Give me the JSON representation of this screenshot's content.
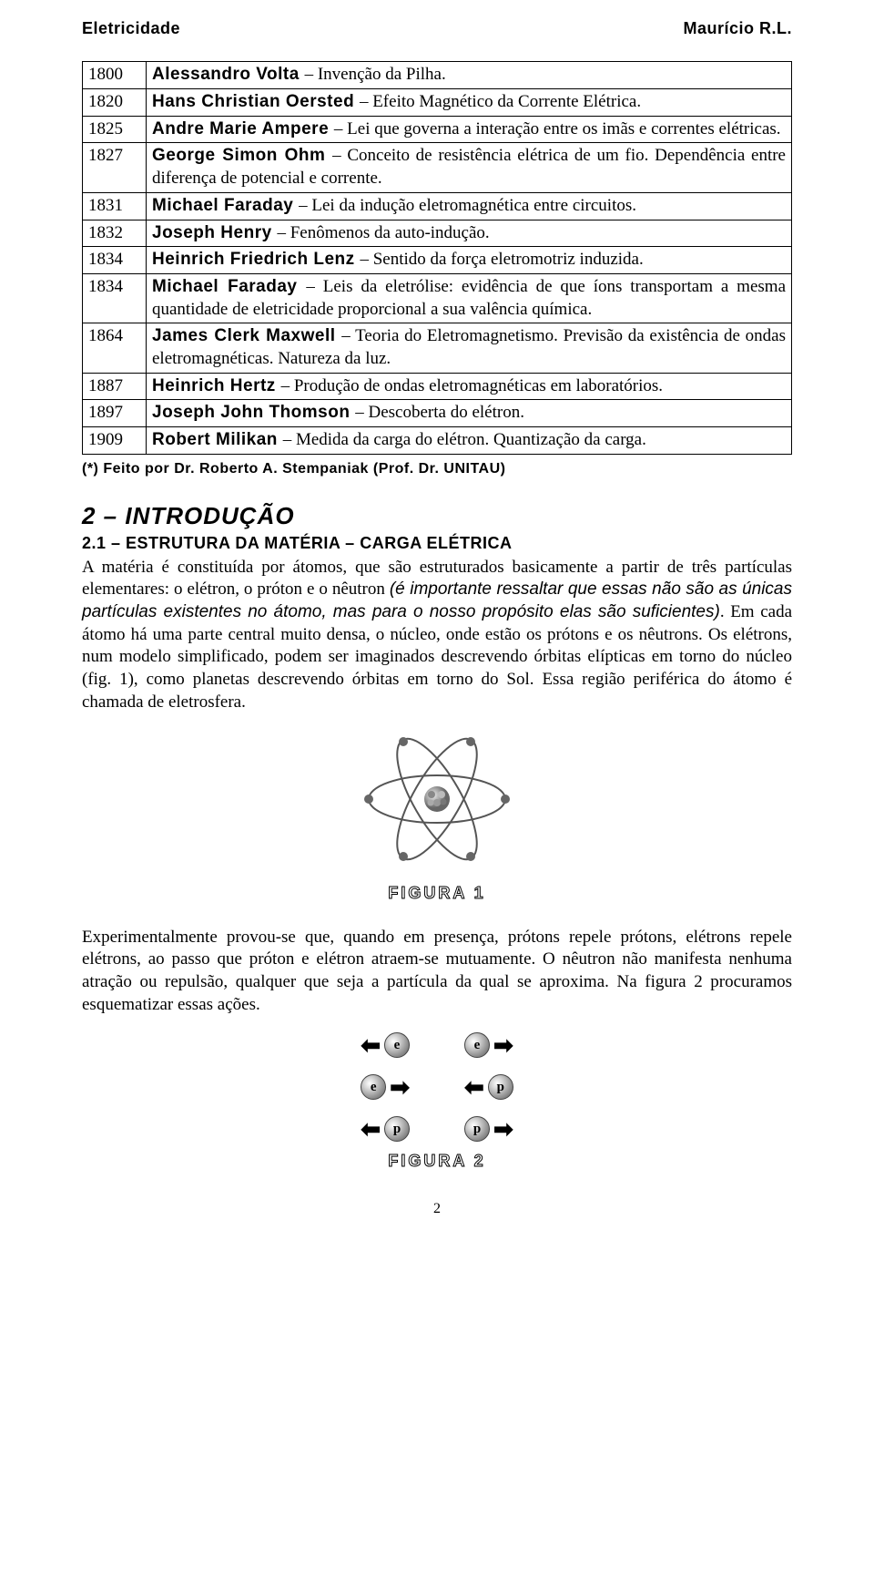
{
  "header": {
    "left": "Eletricidade",
    "right": "Maurício R.L."
  },
  "timeline": [
    {
      "year": "1800",
      "name": "Alessandro Volta",
      "text": "– Invenção da Pilha."
    },
    {
      "year": "1820",
      "name": "Hans Christian Oersted",
      "text": "– Efeito Magnético da Corrente Elétrica."
    },
    {
      "year": "1825",
      "name": "Andre Marie Ampere",
      "text": "– Lei que governa a interação entre os imãs e correntes elétricas."
    },
    {
      "year": "1827",
      "name": "George Simon Ohm",
      "text": "– Conceito de resistência elétrica de um fio. Dependência entre diferença de potencial e corrente."
    },
    {
      "year": "1831",
      "name": "Michael Faraday",
      "text": "– Lei da indução eletromagnética entre circuitos."
    },
    {
      "year": "1832",
      "name": "Joseph Henry",
      "text": "– Fenômenos da auto-indução."
    },
    {
      "year": "1834",
      "name": "Heinrich Friedrich Lenz",
      "text": "– Sentido da força eletromotriz induzida."
    },
    {
      "year": "1834",
      "name": "Michael Faraday",
      "text": "– Leis da eletrólise: evidência de que íons transportam a mesma quantidade de eletricidade proporcional a sua valência química."
    },
    {
      "year": "1864",
      "name": "James Clerk Maxwell",
      "text": "– Teoria do Eletromagnetismo. Previsão da existência de ondas eletromagnéticas. Natureza da luz."
    },
    {
      "year": "1887",
      "name": "Heinrich Hertz",
      "text": "– Produção de ondas eletromagnéticas em laboratórios."
    },
    {
      "year": "1897",
      "name": "Joseph John Thomson",
      "text": "– Descoberta do elétron."
    },
    {
      "year": "1909",
      "name": "Robert Milikan",
      "text": "– Medida da carga do elétron. Quantização da carga."
    }
  ],
  "footnote": "(*) Feito por Dr. Roberto A. Stempaniak (Prof. Dr. UNITAU)",
  "section": {
    "title": "2 – INTRODUÇÃO",
    "sub_title": "2.1 – ESTRUTURA DA MATÉRIA – CARGA ELÉTRICA",
    "para1_a": "A matéria é constituída por átomos, que são estruturados basicamente a partir de três partículas elementares: o elétron, o próton e o nêutron ",
    "para1_italic": "(é importante ressaltar que essas não são as únicas partículas existentes no átomo, mas para o nosso propósito elas são suficientes)",
    "para1_b": ". Em cada átomo há uma parte central muito densa, o núcleo, onde estão os prótons e os nêutrons. Os elétrons, num modelo simplificado, podem ser imaginados descrevendo órbitas elípticas em torno do núcleo (fig. 1), como planetas descrevendo órbitas em torno do Sol. Essa região periférica do átomo é chamada de eletrosfera."
  },
  "figure1": {
    "caption": "FIGURA 1"
  },
  "para2": "Experimentalmente provou-se que, quando em presença, prótons repele prótons, elétrons repele elétrons, ao passo que próton e elétron atraem-se mutuamente. O nêutron não manifesta nenhuma atração ou repulsão, qualquer que seja a partícula da qual se aproxima. Na figura 2 procuramos esquematizar essas ações.",
  "figure2": {
    "caption": "FIGURA 2",
    "rows": [
      [
        {
          "dir": "left",
          "label": "e"
        },
        {
          "dir": "right",
          "label": "e"
        }
      ],
      [
        {
          "dir": "right",
          "label": "e"
        },
        {
          "dir": "left",
          "label": "p"
        }
      ],
      [
        {
          "dir": "left",
          "label": "p"
        },
        {
          "dir": "right",
          "label": "p"
        }
      ]
    ]
  },
  "page_number": "2",
  "colors": {
    "text": "#000000",
    "background": "#ffffff",
    "border": "#000000",
    "particle_light": "#ffffff",
    "particle_mid": "#d8d8d8",
    "particle_dark": "#555555"
  },
  "typography": {
    "body_font": "Times New Roman",
    "display_font": "Arial Black / Impact",
    "body_size_pt": 14,
    "title_size_pt": 20,
    "subtitle_size_pt": 14
  }
}
